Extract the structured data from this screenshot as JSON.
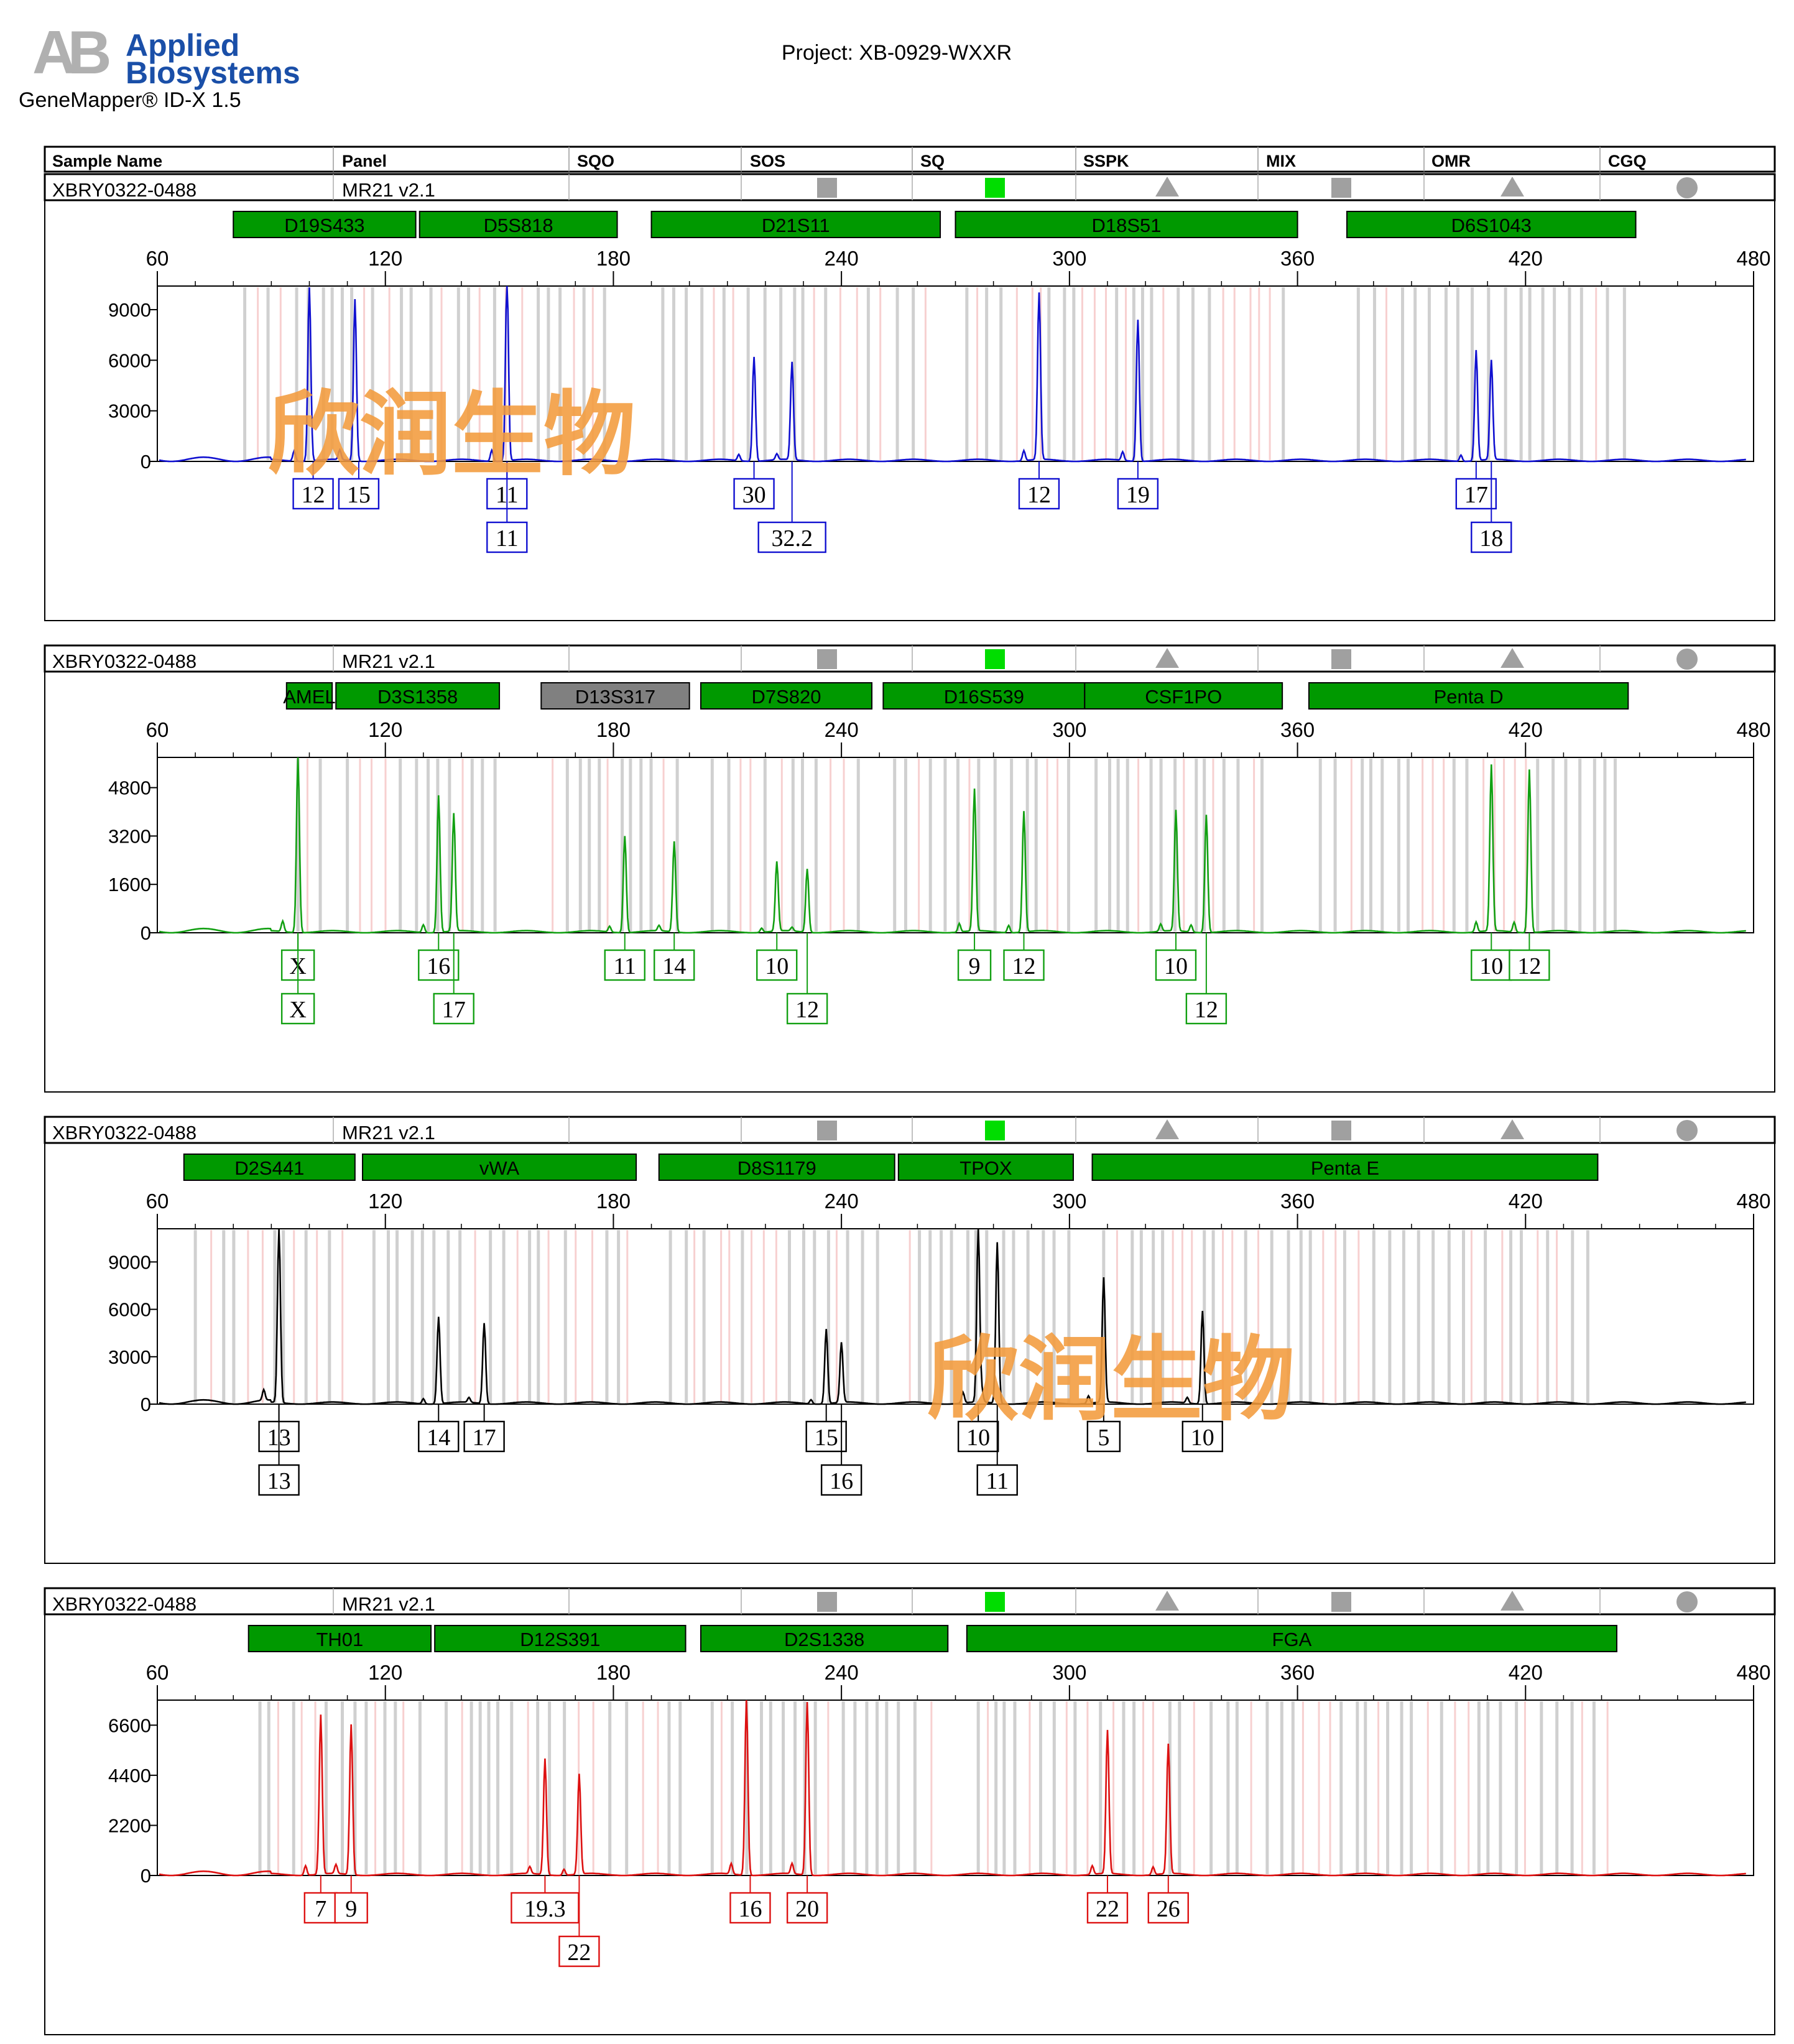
{
  "header": {
    "logo_mark": "AB",
    "logo_line1": "Applied",
    "logo_line2": "Biosystems",
    "software": "GeneMapper® ID-X  1.5",
    "project": "Project: XB-0929-WXXR",
    "watermark": "欣润生物"
  },
  "table_header": [
    "Sample Name",
    "Panel",
    "SQO",
    "SOS",
    "SQ",
    "SSPK",
    "MIX",
    "OMR",
    "CGQ"
  ],
  "colors": {
    "blue": "#1010d0",
    "green": "#12a012",
    "black": "#000000",
    "red": "#dd1111",
    "marker_green": "#009900",
    "marker_gray": "#808080",
    "status_green": "#00dd00",
    "status_gray": "#a0a0a0",
    "watermark": "#f39b3c"
  },
  "quality_icons": [
    "",
    "",
    "square-gray",
    "",
    "square-green",
    "triangle-gray",
    "square-gray",
    "triangle-gray",
    "circle-gray"
  ],
  "chart_data": [
    {
      "type": "line",
      "sample": "XBRY0322-0488",
      "panel": "MR21  v2.1",
      "color": "blue",
      "xlim": [
        60,
        480
      ],
      "xticks": [
        60,
        120,
        180,
        240,
        300,
        360,
        420,
        480
      ],
      "ylim": [
        0,
        10400
      ],
      "yticks": [
        0,
        3000,
        6000,
        9000
      ],
      "markers": [
        {
          "name": "D19S433",
          "start": 80,
          "end": 128,
          "color": "green"
        },
        {
          "name": "D5S818",
          "start": 129,
          "end": 181,
          "color": "green"
        },
        {
          "name": "D21S11",
          "start": 190,
          "end": 266,
          "color": "green"
        },
        {
          "name": "D18S51",
          "start": 270,
          "end": 360,
          "color": "green"
        },
        {
          "name": "D6S1043",
          "start": 373,
          "end": 449,
          "color": "green"
        }
      ],
      "peaks": [
        [
          100,
          10300
        ],
        [
          112,
          9600
        ],
        [
          152,
          11000
        ],
        [
          217,
          6200
        ],
        [
          227,
          5800
        ],
        [
          292,
          9900
        ],
        [
          318,
          8400
        ],
        [
          407,
          6200
        ],
        [
          411,
          5900
        ]
      ],
      "alleles": [
        {
          "x": 101,
          "row": 1,
          "label": "12"
        },
        {
          "x": 113,
          "row": 1,
          "label": "15"
        },
        {
          "x": 152,
          "row": 1,
          "label": "11"
        },
        {
          "x": 152,
          "row": 2,
          "label": "11"
        },
        {
          "x": 217,
          "row": 1,
          "label": "30"
        },
        {
          "x": 227,
          "row": 2,
          "label": "32.2"
        },
        {
          "x": 292,
          "row": 1,
          "label": "12"
        },
        {
          "x": 318,
          "row": 1,
          "label": "19"
        },
        {
          "x": 407,
          "row": 1,
          "label": "17"
        },
        {
          "x": 411,
          "row": 2,
          "label": "18"
        }
      ]
    },
    {
      "type": "line",
      "sample": "XBRY0322-0488",
      "panel": "MR21  v2.1",
      "color": "green",
      "xlim": [
        60,
        480
      ],
      "xticks": [
        60,
        120,
        180,
        240,
        300,
        360,
        420,
        480
      ],
      "ylim": [
        0,
        5800
      ],
      "yticks": [
        0,
        1600,
        3200,
        4800
      ],
      "markers": [
        {
          "name": "AMEL",
          "start": 94,
          "end": 106,
          "color": "green"
        },
        {
          "name": "D3S1358",
          "start": 107,
          "end": 150,
          "color": "green"
        },
        {
          "name": "D13S317",
          "start": 161,
          "end": 200,
          "color": "gray"
        },
        {
          "name": "D7S820",
          "start": 203,
          "end": 248,
          "color": "green"
        },
        {
          "name": "D16S539",
          "start": 251,
          "end": 304,
          "color": "green"
        },
        {
          "name": "CSF1PO",
          "start": 304,
          "end": 356,
          "color": "green"
        },
        {
          "name": "Penta D",
          "start": 363,
          "end": 447,
          "color": "green"
        }
      ],
      "peaks": [
        [
          97,
          5800
        ],
        [
          134,
          4300
        ],
        [
          138,
          3900
        ],
        [
          183,
          3200
        ],
        [
          196,
          3000
        ],
        [
          223,
          2300
        ],
        [
          231,
          2100
        ],
        [
          275,
          4700
        ],
        [
          288,
          4000
        ],
        [
          328,
          4000
        ],
        [
          336,
          3900
        ],
        [
          411,
          5500
        ],
        [
          421,
          5400
        ]
      ],
      "alleles": [
        {
          "x": 97,
          "row": 1,
          "label": "X"
        },
        {
          "x": 97,
          "row": 2,
          "label": "X"
        },
        {
          "x": 134,
          "row": 1,
          "label": "16"
        },
        {
          "x": 138,
          "row": 2,
          "label": "17"
        },
        {
          "x": 183,
          "row": 1,
          "label": "11"
        },
        {
          "x": 196,
          "row": 1,
          "label": "14"
        },
        {
          "x": 223,
          "row": 1,
          "label": "10"
        },
        {
          "x": 231,
          "row": 2,
          "label": "12"
        },
        {
          "x": 275,
          "row": 1,
          "label": "9"
        },
        {
          "x": 288,
          "row": 1,
          "label": "12"
        },
        {
          "x": 328,
          "row": 1,
          "label": "10"
        },
        {
          "x": 336,
          "row": 2,
          "label": "12"
        },
        {
          "x": 411,
          "row": 1,
          "label": "10"
        },
        {
          "x": 421,
          "row": 1,
          "label": "12"
        }
      ]
    },
    {
      "type": "line",
      "sample": "XBRY0322-0488",
      "panel": "MR21  v2.1",
      "color": "black",
      "xlim": [
        60,
        480
      ],
      "xticks": [
        60,
        120,
        180,
        240,
        300,
        360,
        420,
        480
      ],
      "ylim": [
        0,
        11100
      ],
      "yticks": [
        0,
        3000,
        6000,
        9000
      ],
      "markers": [
        {
          "name": "D2S441",
          "start": 67,
          "end": 112,
          "color": "green"
        },
        {
          "name": "vWA",
          "start": 114,
          "end": 186,
          "color": "green"
        },
        {
          "name": "D8S1179",
          "start": 192,
          "end": 254,
          "color": "green"
        },
        {
          "name": "TPOX",
          "start": 255,
          "end": 301,
          "color": "green"
        },
        {
          "name": "Penta E",
          "start": 306,
          "end": 439,
          "color": "green"
        }
      ],
      "peaks": [
        [
          92,
          11100
        ],
        [
          134,
          5500
        ],
        [
          146,
          5100
        ],
        [
          236,
          4500
        ],
        [
          240,
          3800
        ],
        [
          276,
          11100
        ],
        [
          281,
          10200
        ],
        [
          309,
          7900
        ],
        [
          335,
          5900
        ]
      ],
      "alleles": [
        {
          "x": 92,
          "row": 1,
          "label": "13"
        },
        {
          "x": 92,
          "row": 2,
          "label": "13"
        },
        {
          "x": 134,
          "row": 1,
          "label": "14"
        },
        {
          "x": 146,
          "row": 1,
          "label": "17"
        },
        {
          "x": 236,
          "row": 1,
          "label": "15"
        },
        {
          "x": 240,
          "row": 2,
          "label": "16"
        },
        {
          "x": 276,
          "row": 1,
          "label": "10"
        },
        {
          "x": 281,
          "row": 2,
          "label": "11"
        },
        {
          "x": 309,
          "row": 1,
          "label": "5"
        },
        {
          "x": 335,
          "row": 1,
          "label": "10"
        }
      ]
    },
    {
      "type": "line",
      "sample": "XBRY0322-0488",
      "panel": "MR21  v2.1",
      "color": "red",
      "xlim": [
        60,
        480
      ],
      "xticks": [
        60,
        120,
        180,
        240,
        300,
        360,
        420,
        480
      ],
      "ylim": [
        0,
        7700
      ],
      "yticks": [
        0,
        2200,
        4400,
        6600
      ],
      "markers": [
        {
          "name": "TH01",
          "start": 84,
          "end": 132,
          "color": "green"
        },
        {
          "name": "D12S391",
          "start": 133,
          "end": 199,
          "color": "green"
        },
        {
          "name": "D2S1338",
          "start": 203,
          "end": 268,
          "color": "green"
        },
        {
          "name": "FGA",
          "start": 273,
          "end": 444,
          "color": "green"
        }
      ],
      "peaks": [
        [
          103,
          7000
        ],
        [
          111,
          6600
        ],
        [
          162,
          5100
        ],
        [
          171,
          4400
        ],
        [
          215,
          7700
        ],
        [
          231,
          7600
        ],
        [
          310,
          6300
        ],
        [
          326,
          5700
        ]
      ],
      "alleles": [
        {
          "x": 103,
          "row": 1,
          "label": "7"
        },
        {
          "x": 111,
          "row": 1,
          "label": "9"
        },
        {
          "x": 162,
          "row": 1,
          "label": "19.3"
        },
        {
          "x": 171,
          "row": 2,
          "label": "22"
        },
        {
          "x": 216,
          "row": 1,
          "label": "16"
        },
        {
          "x": 231,
          "row": 1,
          "label": "20"
        },
        {
          "x": 310,
          "row": 1,
          "label": "22"
        },
        {
          "x": 326,
          "row": 1,
          "label": "26"
        }
      ]
    }
  ]
}
